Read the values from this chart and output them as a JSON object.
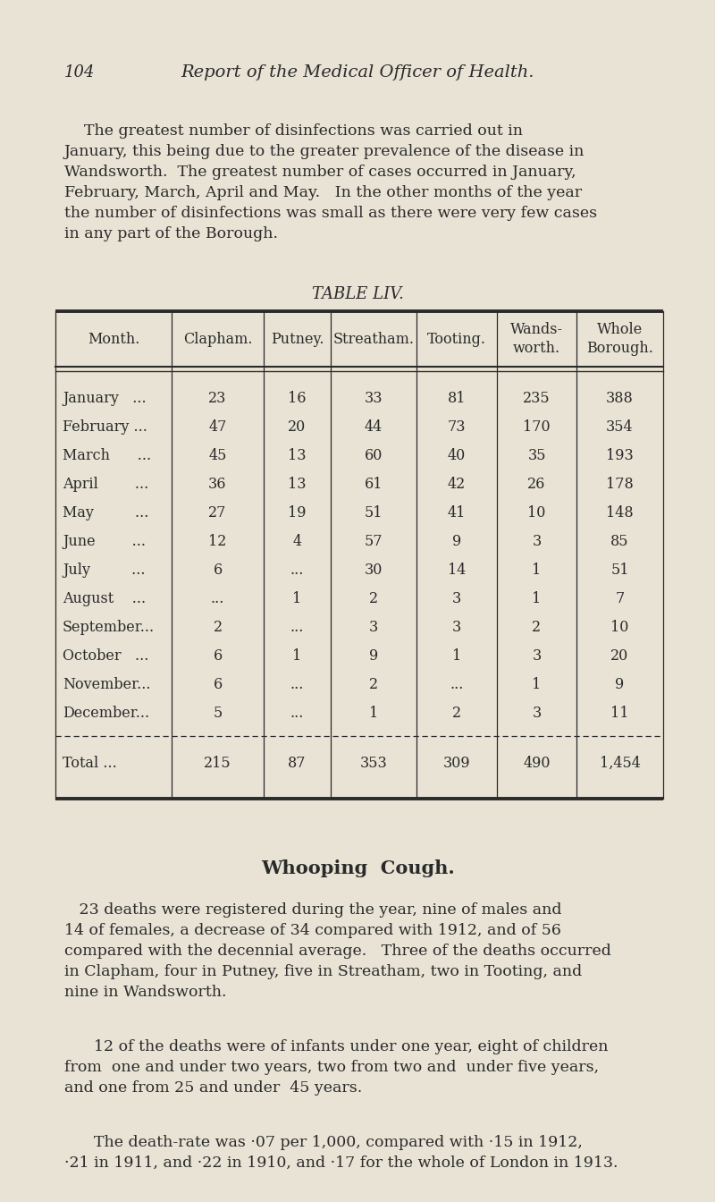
{
  "bg_color": "#e8e3d5",
  "page_number": "104",
  "header_title": "Report of the Medical Officer of Health.",
  "table_title": "TABLE LIV.",
  "table_headers": [
    "Month.",
    "Clapham.",
    "Putney.",
    "Streatham.",
    "Tooting.",
    "Wands-\nworth.",
    "Whole\nBorough."
  ],
  "table_rows": [
    [
      "January   ...",
      "23",
      "16",
      "33",
      "81",
      "235",
      "388"
    ],
    [
      "February ...",
      "47",
      "20",
      "44",
      "73",
      "170",
      "354"
    ],
    [
      "March      ...",
      "45",
      "13",
      "60",
      "40",
      "35",
      "193"
    ],
    [
      "April        ...",
      "36",
      "13",
      "61",
      "42",
      "26",
      "178"
    ],
    [
      "May         ...",
      "27",
      "19",
      "51",
      "41",
      "10",
      "148"
    ],
    [
      "June        ...",
      "12",
      "4",
      "57",
      "9",
      "3",
      "85"
    ],
    [
      "July         ...",
      "6",
      "...",
      "30",
      "14",
      "1",
      "51"
    ],
    [
      "August    ...",
      "...",
      "1",
      "2",
      "3",
      "1",
      "7"
    ],
    [
      "September...",
      "2",
      "...",
      "3",
      "3",
      "2",
      "10"
    ],
    [
      "October   ...",
      "6",
      "1",
      "9",
      "1",
      "3",
      "20"
    ],
    [
      "November...",
      "6",
      "...",
      "2",
      "...",
      "1",
      "9"
    ],
    [
      "December...",
      "5",
      "...",
      "1",
      "2",
      "3",
      "11"
    ]
  ],
  "table_total": [
    "Total ...",
    "215",
    "87",
    "353",
    "309",
    "490",
    "1,454"
  ],
  "section_heading": "Whooping  Cough.",
  "text_color": "#2a2a2a",
  "line_color": "#2a2a2a",
  "intro_line1": "    The greatest number of disinfections was carried out in",
  "intro_line2": "January, this being due to the greater prevalence of the disease in",
  "intro_line3": "Wandsworth.  The greatest number of cases occurred in January,",
  "intro_line4": "February, March, April and May.   In the other months of the year",
  "intro_line5": "the number of disinfections was small as there were very few cases",
  "intro_line6": "in any part of the Borough.",
  "p1_line1": "   23 deaths were registered during the year, nine of males and",
  "p1_line2": "14 of females, a decrease of 34 compared with 1912, and of 56",
  "p1_line3": "compared with the decennial average.   Three of the deaths occurred",
  "p1_line4": "in Clapham, four in Putney, five in Streatham, two in Tooting, and",
  "p1_line5": "nine in Wandsworth.",
  "p2_line1": "      12 of the deaths were of infants under one year, eight of children",
  "p2_line2": "from  one and under two years, two from two and  under five years,",
  "p2_line3": "and one from 25 and under  45 years.",
  "p3_line1": "      The death-rate was ·07 per 1,000, compared with ·15 in 1912,",
  "p3_line2": "·21 in 1911, and ·22 in 1910, and ·17 for the whole of London in 1913."
}
